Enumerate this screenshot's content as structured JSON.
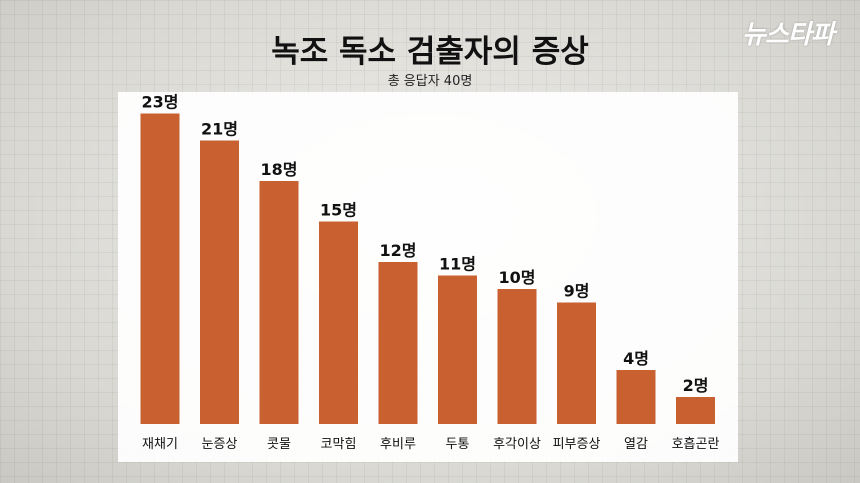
{
  "logo": "뉴스타파",
  "chart_data": {
    "type": "bar",
    "title": "녹조 독소 검출자의 증상",
    "subtitle": "총 응답자 40명",
    "categories": [
      "재채기",
      "눈증상",
      "콧물",
      "코막힘",
      "후비루",
      "두통",
      "후각이상",
      "피부증상",
      "열감",
      "호흡곤란"
    ],
    "values": [
      23,
      21,
      18,
      15,
      12,
      11,
      10,
      9,
      4,
      2
    ],
    "value_labels": [
      "23명",
      "21명",
      "18명",
      "15명",
      "12명",
      "11명",
      "10명",
      "9명",
      "4명",
      "2명"
    ],
    "ylim": [
      0,
      24
    ],
    "grid": false,
    "colors": {
      "bar": "#c8602f",
      "panel": "#ffffff",
      "text": "#111111"
    }
  }
}
